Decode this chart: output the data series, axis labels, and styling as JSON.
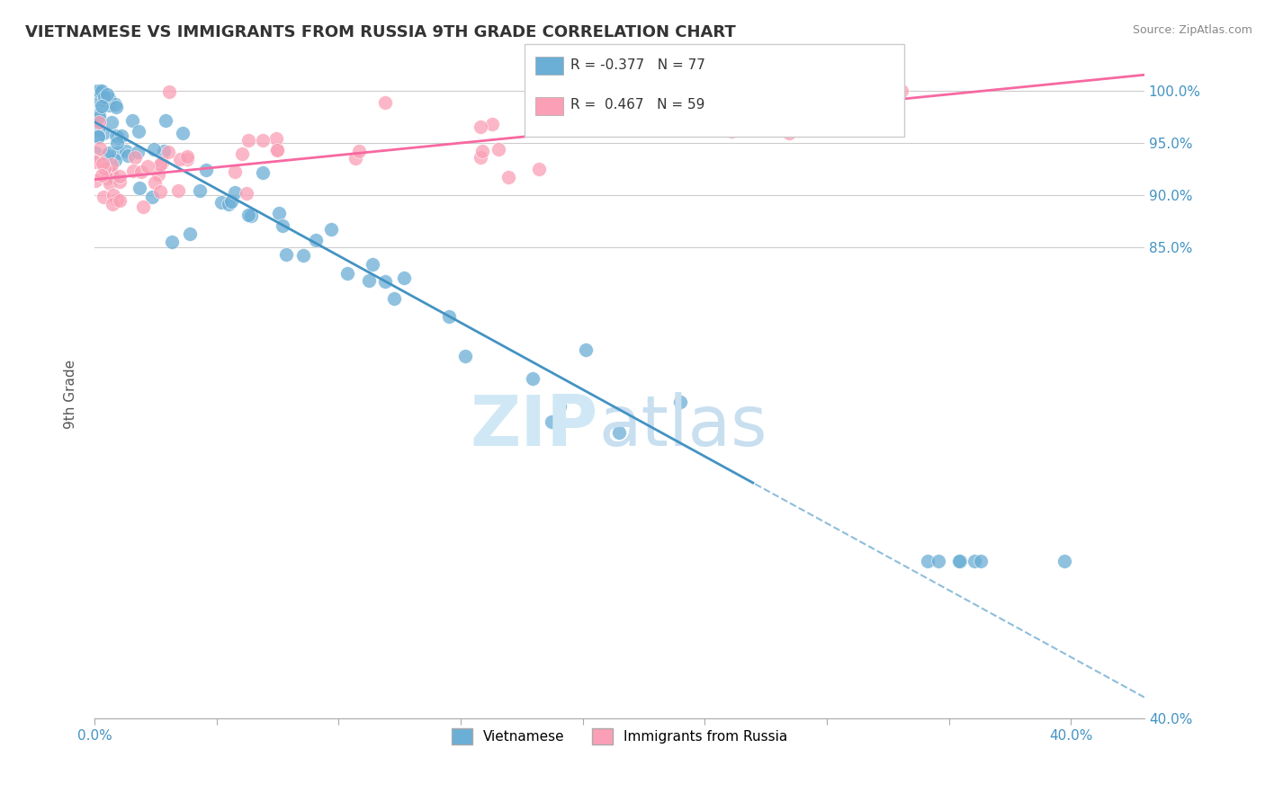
{
  "title": "VIETNAMESE VS IMMIGRANTS FROM RUSSIA 9TH GRADE CORRELATION CHART",
  "source": "Source: ZipAtlas.com",
  "ylabel": "9th Grade",
  "xmin": 0.0,
  "xmax": 43.0,
  "ymin": 40.0,
  "ymax": 102.0,
  "yticks_right": [
    40.0,
    85.0,
    90.0,
    95.0,
    100.0
  ],
  "ytick_labels_right": [
    "40.0%",
    "85.0%",
    "90.0%",
    "95.0%",
    "100.0%"
  ],
  "r_vietnamese": -0.377,
  "n_vietnamese": 77,
  "r_russia": 0.467,
  "n_russia": 59,
  "color_vietnamese": "#6baed6",
  "color_russia": "#fa9fb5",
  "color_trendline_vietnamese": "#4393c3",
  "color_trendline_russia": "#f768a1",
  "watermark_color": "#d0e8f5",
  "background_color": "#ffffff",
  "blue_trend_x0": 0.0,
  "blue_trend_y0": 97.0,
  "blue_trend_x1": 43.0,
  "blue_trend_y1": 42.0,
  "blue_solid_end": 27.0,
  "pink_trend_x0": 0.0,
  "pink_trend_y0": 91.5,
  "pink_trend_x1": 43.0,
  "pink_trend_y1": 101.5
}
